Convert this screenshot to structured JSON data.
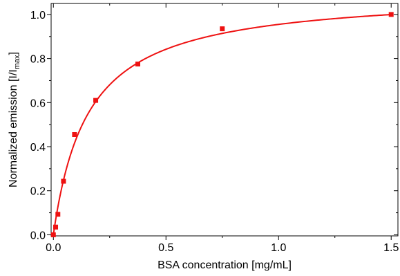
{
  "chart_data": {
    "type": "scatter",
    "title": "",
    "xlabel": "BSA concentration [mg/mL]",
    "ylabel": {
      "prefix": "Normalized emission [I/I",
      "subscript": "max",
      "suffix": "]"
    },
    "xlim": [
      -0.01,
      1.53
    ],
    "ylim": [
      -0.005,
      1.05
    ],
    "x_ticks": [
      0.0,
      0.5,
      1.0,
      1.5
    ],
    "x_tick_labels": [
      "0.0",
      "0.5",
      "1.0",
      "1.5"
    ],
    "x_minor_ticks": [
      0.25,
      0.75,
      1.25
    ],
    "y_ticks": [
      0.0,
      0.2,
      0.4,
      0.6,
      0.8,
      1.0
    ],
    "y_tick_labels": [
      "0.0",
      "0.2",
      "0.4",
      "0.6",
      "0.8",
      "1.0"
    ],
    "y_minor_ticks": [
      0.1,
      0.3,
      0.5,
      0.7,
      0.9
    ],
    "grid": false,
    "color": "#ee1111",
    "series": [
      {
        "kind": "points",
        "marker": "square",
        "x": [
          0.0,
          0.01,
          0.02,
          0.045,
          0.094,
          0.188,
          0.375,
          0.75,
          1.5
        ],
        "y": [
          0.0,
          0.035,
          0.093,
          0.243,
          0.455,
          0.61,
          0.775,
          0.935,
          1.0
        ]
      },
      {
        "kind": "fit",
        "model": "hyperbolic",
        "params": {
          "Kd": 0.155,
          "A": 1.103
        }
      }
    ]
  }
}
